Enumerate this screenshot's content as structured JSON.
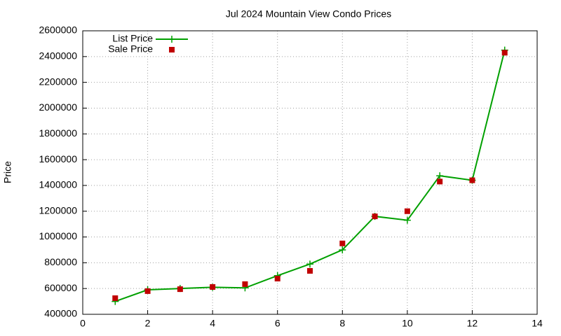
{
  "chart_data": {
    "type": "line",
    "title": "Jul 2024 Mountain View Condo Prices",
    "y_label": "Price",
    "x": [
      1,
      2,
      3,
      4,
      5,
      6,
      7,
      8,
      9,
      10,
      11,
      12,
      13
    ],
    "series": [
      {
        "name": "List Price",
        "color": "#00a000",
        "mode": "lines+markers",
        "marker": "plus",
        "values": [
          500000,
          590000,
          600000,
          610000,
          605000,
          700000,
          790000,
          900000,
          1160000,
          1130000,
          1475000,
          1440000,
          2450000
        ]
      },
      {
        "name": "Sale Price",
        "color": "#c00000",
        "mode": "markers",
        "marker": "square",
        "values": [
          525000,
          580000,
          595000,
          612000,
          634000,
          677000,
          737000,
          950000,
          1160000,
          1200000,
          1430000,
          1440000,
          2430000
        ]
      }
    ],
    "xlim": [
      0,
      14
    ],
    "xticks": [
      0,
      2,
      4,
      6,
      8,
      10,
      12,
      14
    ],
    "ylim": [
      400000,
      2600000
    ],
    "yticks": [
      400000,
      600000,
      800000,
      1000000,
      1200000,
      1400000,
      1600000,
      1800000,
      2000000,
      2200000,
      2400000,
      2600000
    ],
    "grid": true,
    "legend": "top-left"
  }
}
